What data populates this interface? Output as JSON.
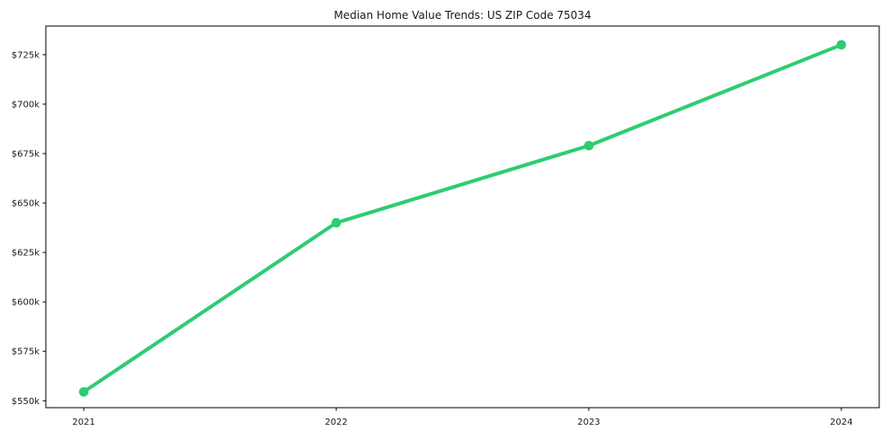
{
  "chart": {
    "accent_color": "#2ecc71",
    "spine_color": "#000000",
    "text_color": "#1a1a1a",
    "background_color": "#ffffff"
  },
  "chart_data": {
    "type": "line",
    "title": "Median Home Value Trends: US ZIP Code 75034",
    "xlabel": "",
    "ylabel": "",
    "categories": [
      "2021",
      "2022",
      "2023",
      "2024"
    ],
    "series": [
      {
        "name": "Median Home Value",
        "values": [
          554500,
          640000,
          679000,
          730000
        ]
      }
    ],
    "ytick_values": [
      550000,
      575000,
      600000,
      625000,
      650000,
      675000,
      700000,
      725000
    ],
    "ytick_labels": [
      "$550k",
      "$575k",
      "$600k",
      "$625k",
      "$650k",
      "$675k",
      "$700k",
      "$725k"
    ],
    "ylim": [
      546500,
      739500
    ],
    "xlim_index": [
      -0.15,
      3.15
    ],
    "grid": false,
    "legend": false,
    "marker": "circle"
  }
}
